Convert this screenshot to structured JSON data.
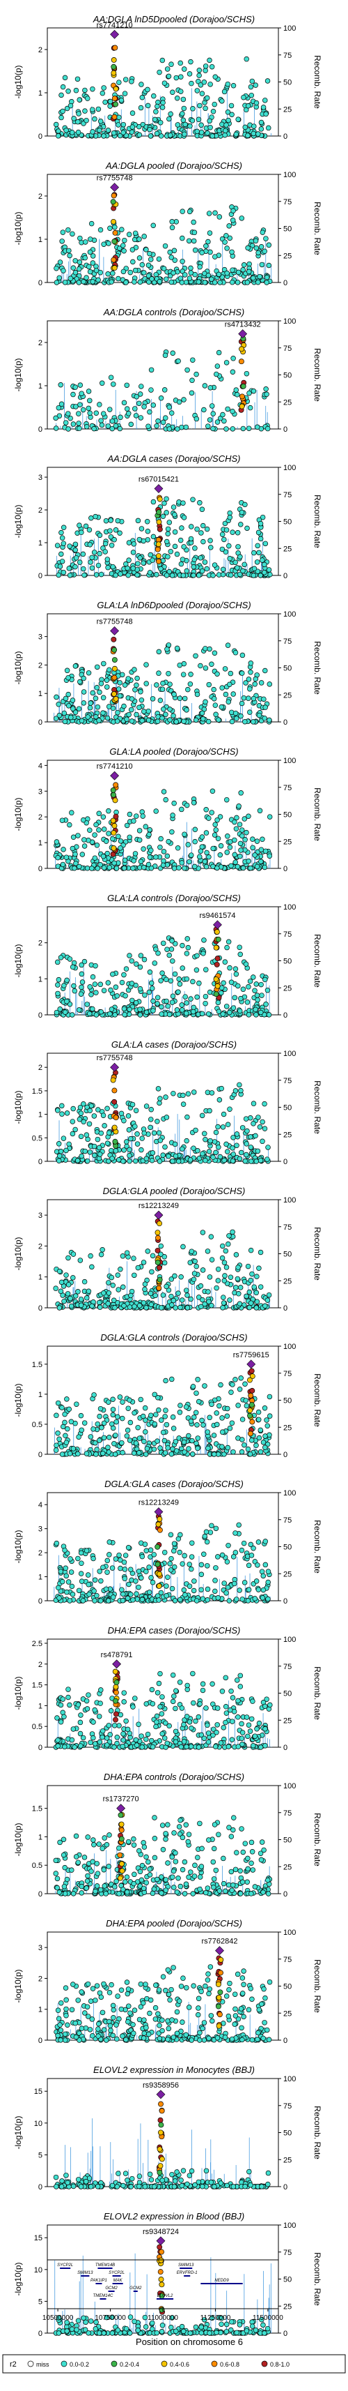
{
  "figure": {
    "xlabel": "Position on chromosome 6",
    "x_ticks": [
      "10500000",
      "10750000",
      "11000000",
      "11250000",
      "11500000"
    ],
    "x_range": [
      10450000,
      11550000
    ],
    "left_axis_label": "-log10(p)",
    "right_axis_label": "Recomb. Rate",
    "right_ticks": [
      0,
      25,
      50,
      75,
      100
    ],
    "legend": {
      "title": "r2",
      "items": [
        {
          "label": "miss",
          "color": "#ffffff"
        },
        {
          "label": "0.0-0.2",
          "color": "#40e0d0"
        },
        {
          "label": "0.2-0.4",
          "color": "#3cb44b"
        },
        {
          "label": "0.4-0.6",
          "color": "#f5c400"
        },
        {
          "label": "0.6-0.8",
          "color": "#ff8c00"
        },
        {
          "label": "0.8-1.0",
          "color": "#b22222"
        }
      ]
    },
    "colors": {
      "lead": "#7b1fa2",
      "recomb": "#4a9de0",
      "bin1": "#40e0d0",
      "bin2": "#3cb44b",
      "bin3": "#f5c400",
      "bin4": "#ff8c00",
      "bin5": "#b22222"
    },
    "genes": [
      {
        "label": "SYCP2L",
        "start": 10510000,
        "end": 10560000
      },
      {
        "label": "SMIM13",
        "start": 10610000,
        "end": 10650000
      },
      {
        "label": "PAK1IP1",
        "start": 10680000,
        "end": 10710000
      },
      {
        "label": "GCM2",
        "start": 10740000,
        "end": 10770000
      },
      {
        "label": "TMEM14C",
        "start": 10700000,
        "end": 10730000
      },
      {
        "label": "TMEM14B",
        "start": 10690000,
        "end": 10760000
      },
      {
        "label": "SYCP2L",
        "start": 10760000,
        "end": 10800000
      },
      {
        "label": "MAK",
        "start": 10760000,
        "end": 10810000
      },
      {
        "label": "GCM2",
        "start": 10860000,
        "end": 10880000
      },
      {
        "label": "ELOVL2",
        "start": 10970000,
        "end": 11050000
      },
      {
        "label": "SMIM13",
        "start": 11080000,
        "end": 11140000
      },
      {
        "label": "ERVFRD-1",
        "start": 11100000,
        "end": 11130000
      },
      {
        "label": "NEDD9",
        "start": 11180000,
        "end": 11380000
      }
    ]
  },
  "chart_data": [
    {
      "type": "scatter",
      "title": "AA:DGLA lnD5Dpooled (Dorajoo/SCHS)",
      "ylim": [
        0,
        2.5
      ],
      "y_ticks": [
        0,
        1,
        2
      ],
      "lead_snp": {
        "label": "rs7741210",
        "x": 10770000,
        "y": 2.35
      },
      "peak": "early",
      "density": 1.0
    },
    {
      "type": "scatter",
      "title": "AA:DGLA pooled (Dorajoo/SCHS)",
      "ylim": [
        0,
        2.5
      ],
      "y_ticks": [
        0,
        1,
        2
      ],
      "lead_snp": {
        "label": "rs7755748",
        "x": 10770000,
        "y": 2.2
      },
      "peak": "early",
      "density": 1.0
    },
    {
      "type": "scatter",
      "title": "AA:DGLA controls (Dorajoo/SCHS)",
      "ylim": [
        0,
        2.5
      ],
      "y_ticks": [
        0,
        1,
        2
      ],
      "lead_snp": {
        "label": "rs4713432",
        "x": 11380000,
        "y": 2.2
      },
      "peak": "none",
      "density": 0.5
    },
    {
      "type": "scatter",
      "title": "AA:DGLA cases (Dorajoo/SCHS)",
      "ylim": [
        0,
        3.3
      ],
      "y_ticks": [
        0,
        1,
        2,
        3
      ],
      "lead_snp": {
        "label": "rs67015421",
        "x": 10980000,
        "y": 2.65
      },
      "peak": "mid",
      "density": 1.0
    },
    {
      "type": "scatter",
      "title": "GLA:LA lnD6Dpooled (Dorajoo/SCHS)",
      "ylim": [
        0,
        3.8
      ],
      "y_ticks": [
        0,
        1,
        2,
        3
      ],
      "lead_snp": {
        "label": "rs7755748",
        "x": 10770000,
        "y": 3.2
      },
      "peak": "early",
      "density": 1.0
    },
    {
      "type": "scatter",
      "title": "GLA:LA pooled (Dorajoo/SCHS)",
      "ylim": [
        0,
        4.2
      ],
      "y_ticks": [
        0,
        1,
        2,
        3,
        4
      ],
      "lead_snp": {
        "label": "rs7741210",
        "x": 10770000,
        "y": 3.6
      },
      "peak": "early",
      "density": 1.0
    },
    {
      "type": "scatter",
      "title": "GLA:LA controls (Dorajoo/SCHS)",
      "ylim": [
        0,
        3.0
      ],
      "y_ticks": [
        0,
        1,
        2
      ],
      "lead_snp": {
        "label": "rs9461574",
        "x": 11260000,
        "y": 2.5
      },
      "peak": "late",
      "density": 1.0
    },
    {
      "type": "scatter",
      "title": "GLA:LA cases (Dorajoo/SCHS)",
      "ylim": [
        0,
        2.3
      ],
      "y_ticks": [
        0.0,
        0.5,
        1.0,
        1.5,
        2.0
      ],
      "lead_snp": {
        "label": "rs7755748",
        "x": 10770000,
        "y": 2.0
      },
      "peak": "early",
      "density": 1.0
    },
    {
      "type": "scatter",
      "title": "DGLA:GLA pooled (Dorajoo/SCHS)",
      "ylim": [
        0,
        3.5
      ],
      "y_ticks": [
        0,
        1,
        2,
        3
      ],
      "lead_snp": {
        "label": "rs12213249",
        "x": 10980000,
        "y": 3.0
      },
      "peak": "mid",
      "density": 1.0
    },
    {
      "type": "scatter",
      "title": "DGLA:GLA controls (Dorajoo/SCHS)",
      "ylim": [
        0,
        1.8
      ],
      "y_ticks": [
        0.0,
        0.5,
        1.0,
        1.5
      ],
      "lead_snp": {
        "label": "rs7759615",
        "x": 11420000,
        "y": 1.5
      },
      "peak": "late",
      "density": 1.0
    },
    {
      "type": "scatter",
      "title": "DGLA:GLA cases (Dorajoo/SCHS)",
      "ylim": [
        0,
        4.5
      ],
      "y_ticks": [
        0,
        1,
        2,
        3,
        4
      ],
      "lead_snp": {
        "label": "rs12213249",
        "x": 10980000,
        "y": 3.7
      },
      "peak": "mid",
      "density": 1.0
    },
    {
      "type": "scatter",
      "title": "DHA:EPA cases (Dorajoo/SCHS)",
      "ylim": [
        0,
        2.6
      ],
      "y_ticks": [
        0.0,
        0.5,
        1.0,
        1.5,
        2.0,
        2.5
      ],
      "lead_snp": {
        "label": "rs478791",
        "x": 10780000,
        "y": 2.0
      },
      "peak": "early",
      "density": 1.0
    },
    {
      "type": "scatter",
      "title": "DHA:EPA controls (Dorajoo/SCHS)",
      "ylim": [
        0,
        1.9
      ],
      "y_ticks": [
        0.0,
        0.5,
        1.0,
        1.5
      ],
      "lead_snp": {
        "label": "rs1737270",
        "x": 10800000,
        "y": 1.5
      },
      "peak": "early",
      "density": 1.0
    },
    {
      "type": "scatter",
      "title": "DHA:EPA pooled (Dorajoo/SCHS)",
      "ylim": [
        0,
        3.5
      ],
      "y_ticks": [
        0,
        1,
        2,
        3
      ],
      "lead_snp": {
        "label": "rs7762842",
        "x": 11270000,
        "y": 2.9
      },
      "peak": "late",
      "density": 1.0
    },
    {
      "type": "scatter",
      "title": "ELOVL2 expression in Monocytes (BBJ)",
      "ylim": [
        0,
        17
      ],
      "y_ticks": [
        0,
        5,
        10,
        15
      ],
      "lead_snp": {
        "label": "rs9358956",
        "x": 10990000,
        "y": 14.5
      },
      "peak": "eqtl",
      "density": 0.6
    },
    {
      "type": "scatter",
      "title": "ELOVL2 expression in Blood (BBJ)",
      "ylim": [
        0,
        17
      ],
      "y_ticks": [
        0,
        5,
        10,
        15
      ],
      "lead_snp": {
        "label": "rs9348724",
        "x": 10990000,
        "y": 14.5
      },
      "peak": "eqtl",
      "density": 0.6
    }
  ]
}
